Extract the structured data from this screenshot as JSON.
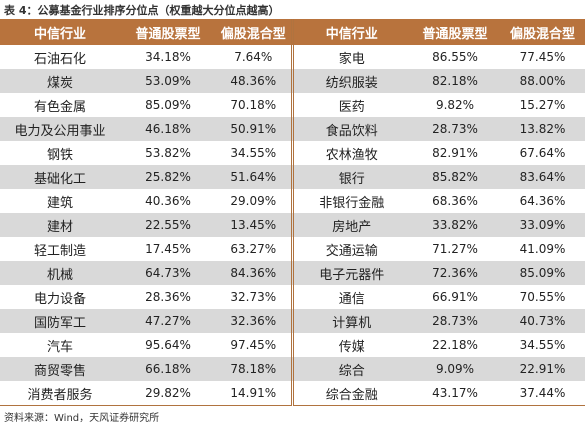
{
  "title": "表 4：公募基金行业排序分位点（权重越大分位点越高）",
  "table": {
    "header": [
      "中信行业",
      "普通股票型",
      "偏股混合型",
      "中信行业",
      "普通股票型",
      "偏股混合型"
    ],
    "rows": [
      [
        "石油石化",
        "34.18%",
        "7.64%",
        "家电",
        "86.55%",
        "77.45%"
      ],
      [
        "煤炭",
        "53.09%",
        "48.36%",
        "纺织服装",
        "82.18%",
        "88.00%"
      ],
      [
        "有色金属",
        "85.09%",
        "70.18%",
        "医药",
        "9.82%",
        "15.27%"
      ],
      [
        "电力及公用事业",
        "46.18%",
        "50.91%",
        "食品饮料",
        "28.73%",
        "13.82%"
      ],
      [
        "钢铁",
        "53.82%",
        "34.55%",
        "农林渔牧",
        "82.91%",
        "67.64%"
      ],
      [
        "基础化工",
        "25.82%",
        "51.64%",
        "银行",
        "85.82%",
        "83.64%"
      ],
      [
        "建筑",
        "40.36%",
        "29.09%",
        "非银行金融",
        "68.36%",
        "64.36%"
      ],
      [
        "建材",
        "22.55%",
        "13.45%",
        "房地产",
        "33.82%",
        "33.09%"
      ],
      [
        "轻工制造",
        "17.45%",
        "63.27%",
        "交通运输",
        "71.27%",
        "41.09%"
      ],
      [
        "机械",
        "64.73%",
        "84.36%",
        "电子元器件",
        "72.36%",
        "85.09%"
      ],
      [
        "电力设备",
        "28.36%",
        "32.73%",
        "通信",
        "66.91%",
        "70.55%"
      ],
      [
        "国防军工",
        "47.27%",
        "32.36%",
        "计算机",
        "28.73%",
        "40.73%"
      ],
      [
        "汽车",
        "95.64%",
        "97.45%",
        "传媒",
        "22.18%",
        "34.55%"
      ],
      [
        "商贸零售",
        "66.18%",
        "78.18%",
        "综合",
        "9.09%",
        "22.91%"
      ],
      [
        "消费者服务",
        "29.82%",
        "14.91%",
        "综合金融",
        "43.17%",
        "37.44%"
      ]
    ]
  },
  "source": "资料来源：Wind，天风证券研究所"
}
